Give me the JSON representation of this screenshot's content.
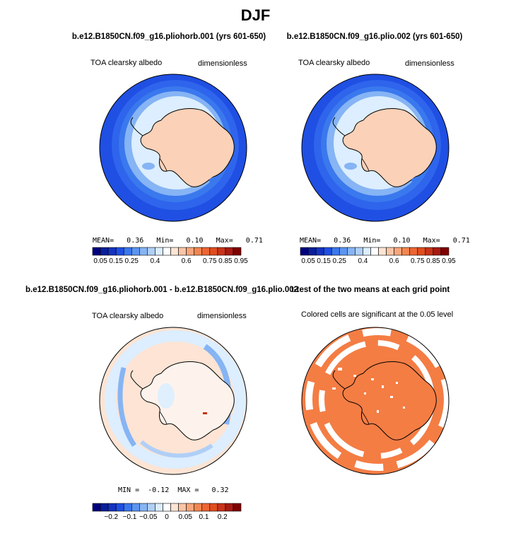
{
  "page_title": "DJF",
  "colors": {
    "ocean_dark": "#1f4fe3",
    "ocean_mid": "#3a78ee",
    "ocean_light": "#86b4f4",
    "ice_pale": "#dceeff",
    "land_peach": "#fbd1b8",
    "diff_bg": "#fde4d4",
    "sig_orange": "#f47d44"
  },
  "panels": [
    {
      "title": "b.e12.B1850CN.f09_g16.pliohorb.001 (yrs 601-650)",
      "left_label": "TOA clearsky albedo",
      "right_label": "dimensionless",
      "stats": {
        "mean_label": "MEAN=",
        "mean": "0.36",
        "min_label": "Min=",
        "min": "0.10",
        "max_label": "Max=",
        "max": "0.71"
      }
    },
    {
      "title": "b.e12.B1850CN.f09_g16.plio.002 (yrs 601-650)",
      "left_label": "TOA clearsky albedo",
      "right_label": "dimensionless",
      "stats": {
        "mean_label": "MEAN=",
        "mean": "0.36",
        "min_label": "Min=",
        "min": "0.10",
        "max_label": "Max=",
        "max": "0.71"
      }
    },
    {
      "title": "b.e12.B1850CN.f09_g16.pliohorb.001 - b.e12.B1850CN.f09_g16.plio.002",
      "left_label": "TOA clearsky albedo",
      "right_label": "dimensionless",
      "stats": {
        "min_label": "MIN =",
        "min": "-0.12",
        "max_label": "MAX =",
        "max": "0.32"
      }
    },
    {
      "title": "t-test of the two means at each grid point",
      "caption": "Colored cells are significant at the 0.05 level"
    }
  ],
  "chart_data": [
    {
      "type": "heatmap",
      "title": "b.e12.B1850CN.f09_g16.pliohorb.001 (yrs 601-650)",
      "projection": "south polar stereographic",
      "variable": "TOA clearsky albedo",
      "units": "dimensionless",
      "mean": 0.36,
      "min": 0.1,
      "max": 0.71,
      "colorbar": {
        "levels": [
          0.05,
          0.1,
          0.15,
          0.2,
          0.25,
          0.3,
          0.35,
          0.4,
          0.45,
          0.5,
          0.55,
          0.6,
          0.65,
          0.7,
          0.75,
          0.8,
          0.85,
          0.9,
          0.95
        ],
        "tick_labels": [
          "0.05",
          "0.15",
          "0.25",
          "0.4",
          "0.6",
          "0.75",
          "0.85",
          "0.95"
        ],
        "colors": [
          "#00007f",
          "#0a1e9a",
          "#1433c0",
          "#1f4fe3",
          "#3a78ee",
          "#5b95f2",
          "#86b4f4",
          "#b0cff7",
          "#dceeff",
          "#ffffff",
          "#fde4d4",
          "#fbc5a6",
          "#f9a67c",
          "#f38650",
          "#ee6533",
          "#e04e1f",
          "#c8341a",
          "#a81b12",
          "#7f0000"
        ]
      }
    },
    {
      "type": "heatmap",
      "title": "b.e12.B1850CN.f09_g16.plio.002 (yrs 601-650)",
      "projection": "south polar stereographic",
      "variable": "TOA clearsky albedo",
      "units": "dimensionless",
      "mean": 0.36,
      "min": 0.1,
      "max": 0.71,
      "colorbar": {
        "levels": [
          0.05,
          0.1,
          0.15,
          0.2,
          0.25,
          0.3,
          0.35,
          0.4,
          0.45,
          0.5,
          0.55,
          0.6,
          0.65,
          0.7,
          0.75,
          0.8,
          0.85,
          0.9,
          0.95
        ],
        "tick_labels": [
          "0.05",
          "0.15",
          "0.25",
          "0.4",
          "0.6",
          "0.75",
          "0.85",
          "0.95"
        ],
        "colors": [
          "#00007f",
          "#0a1e9a",
          "#1433c0",
          "#1f4fe3",
          "#3a78ee",
          "#5b95f2",
          "#86b4f4",
          "#b0cff7",
          "#dceeff",
          "#ffffff",
          "#fde4d4",
          "#fbc5a6",
          "#f9a67c",
          "#f38650",
          "#ee6533",
          "#e04e1f",
          "#c8341a",
          "#a81b12",
          "#7f0000"
        ]
      }
    },
    {
      "type": "heatmap",
      "title": "b.e12.B1850CN.f09_g16.pliohorb.001 - b.e12.B1850CN.f09_g16.plio.002",
      "projection": "south polar stereographic",
      "variable": "TOA clearsky albedo",
      "units": "dimensionless",
      "min": -0.12,
      "max": 0.32,
      "colorbar": {
        "tick_labels": [
          "-0.2",
          "-0.1",
          "-0.05",
          "0",
          "0.05",
          "0.1",
          "0.2"
        ],
        "colors": [
          "#00007f",
          "#0a1e9a",
          "#1433c0",
          "#1f4fe3",
          "#3a78ee",
          "#5b95f2",
          "#86b4f4",
          "#b0cff7",
          "#dceeff",
          "#ffffff",
          "#fde4d4",
          "#fbc5a6",
          "#f9a67c",
          "#f38650",
          "#ee6533",
          "#e04e1f",
          "#c8341a",
          "#a81b12",
          "#7f0000"
        ]
      }
    },
    {
      "type": "heatmap",
      "title": "t-test of the two means at each grid point",
      "projection": "south polar stereographic",
      "significance_level": 0.05,
      "significant_color": "#f47d44"
    }
  ]
}
